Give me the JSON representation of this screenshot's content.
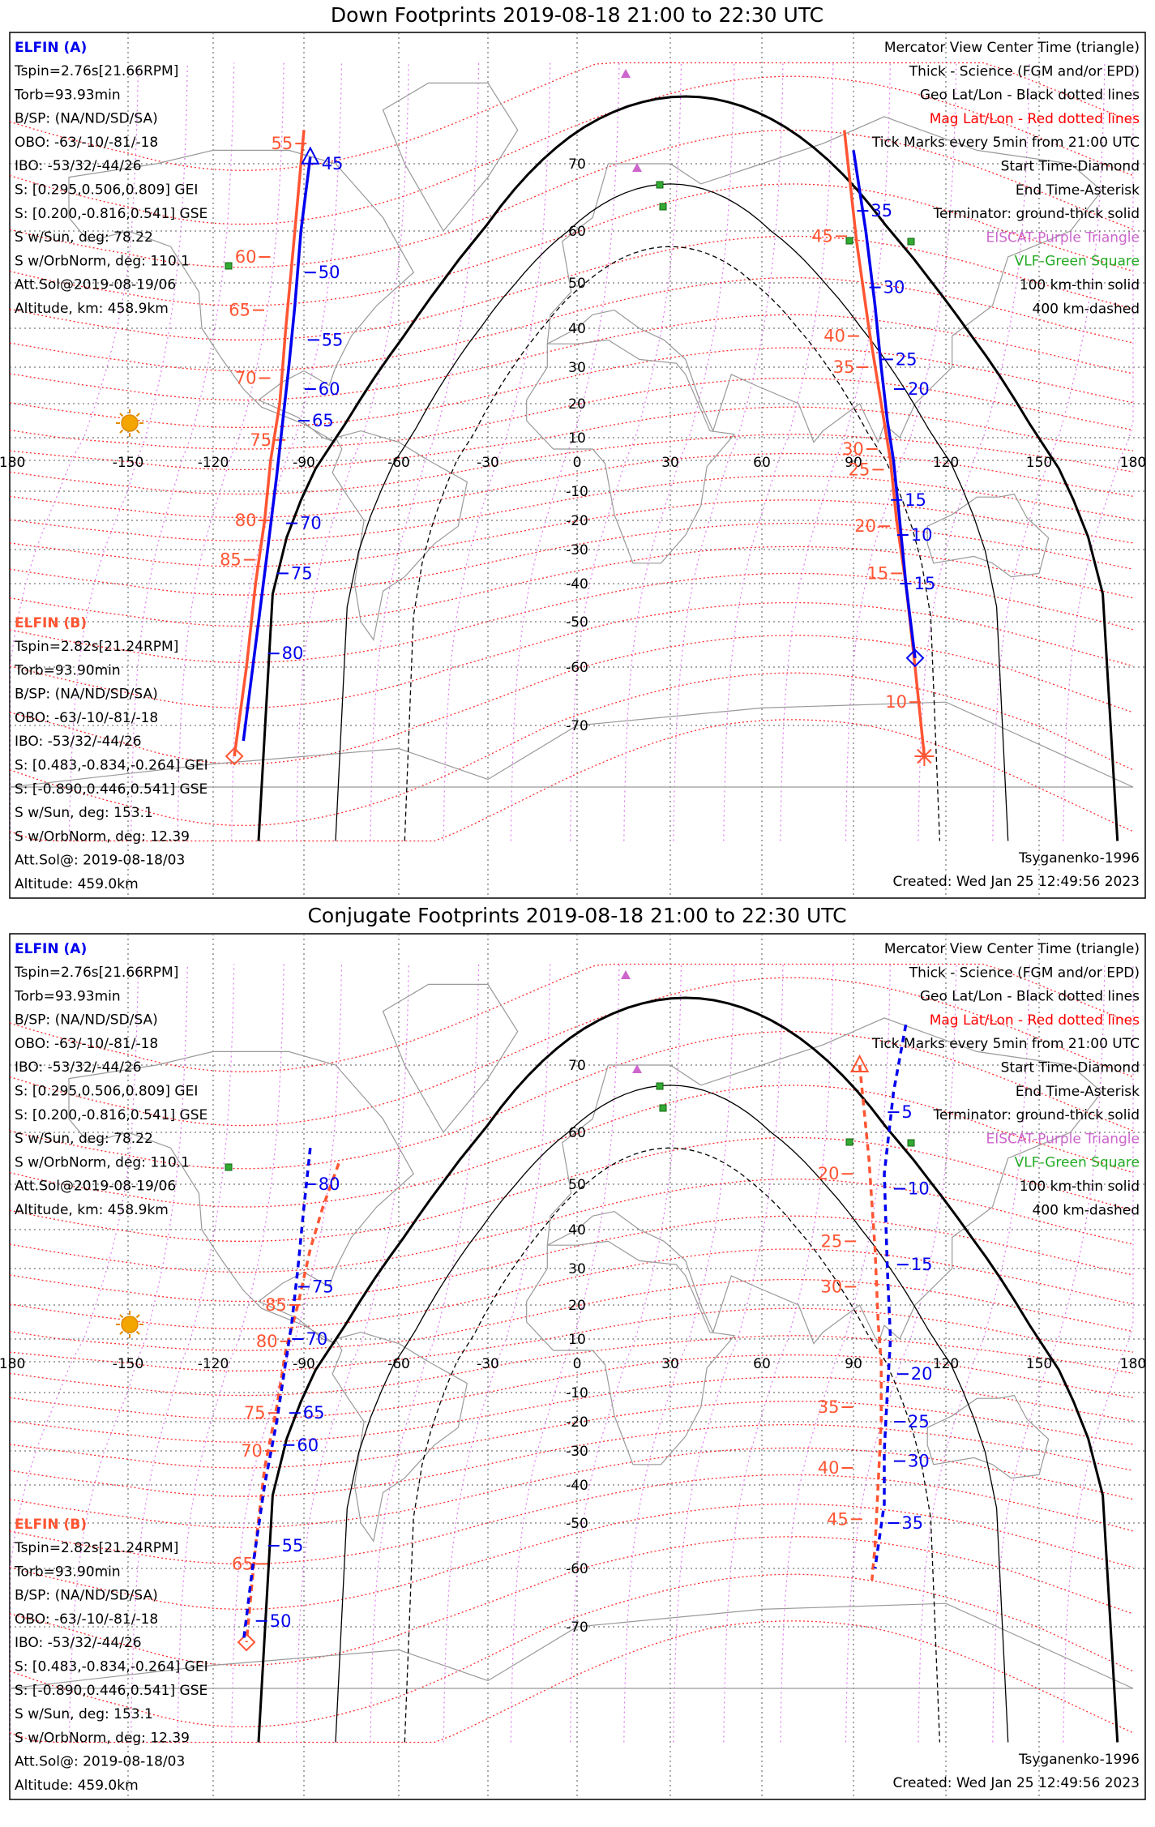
{
  "panels": [
    {
      "title": "Down Footprints 2019-08-18 21:00 to 22:30 UTC",
      "ticks": {
        "lon": [
          "-180",
          "-150",
          "-120",
          "-90",
          "-60",
          "-30",
          "0",
          "30",
          "60",
          "90",
          "120",
          "150",
          "180"
        ],
        "lat": [
          "70",
          "60",
          "50",
          "40",
          "30",
          "20",
          "10",
          "-10",
          "-20",
          "-30",
          "-40",
          "-50",
          "-60",
          "-70"
        ]
      },
      "info_a": {
        "title": "ELFIN (A)",
        "lines": [
          "Tspin=2.76s[21.66RPM]",
          "Torb=93.93min",
          "B/SP: (NA/ND/SD/SA)",
          "OBO: -63/-10/-81/-18",
          "IBO: -53/32/-44/26",
          "S: [0.295,0.506,0.809] GEI",
          "S: [0.200,-0.816,0.541] GSE",
          "S w/Sun, deg: 78.22",
          "S w/OrbNorm, deg: 110.1",
          "Att.Sol@2019-08-19/06",
          "Altitude, km: 458.9km"
        ]
      },
      "info_b": {
        "title": "ELFIN (B)",
        "lines": [
          "Tspin=2.82s[21.24RPM]",
          "Torb=93.90min",
          "B/SP: (NA/ND/SD/SA)",
          "OBO: -63/-10/-81/-18",
          "IBO: -53/32/-44/26",
          "S: [0.483,-0.834,-0.264] GEI",
          "S: [-0.890,0.446,0.541] GSE",
          "S w/Sun, deg: 153.1",
          "S w/OrbNorm, deg: 12.39",
          "Att.Sol@: 2019-08-18/03",
          "Altitude: 459.0km"
        ]
      },
      "legend": [
        {
          "text": "Mercator View Center Time (triangle)",
          "color": "#000000"
        },
        {
          "text": "Thick - Science (FGM and/or EPD)",
          "color": "#000000"
        },
        {
          "text": "Geo Lat/Lon - Black dotted lines",
          "color": "#000000"
        },
        {
          "text": "Mag Lat/Lon - Red dotted lines",
          "color": "#ff0000"
        },
        {
          "text": "Tick Marks every 5min from 21:00 UTC",
          "color": "#000000"
        },
        {
          "text": "Start Time-Diamond",
          "color": "#000000"
        },
        {
          "text": "End Time-Asterisk",
          "color": "#000000"
        },
        {
          "text": "Terminator: ground-thick solid",
          "color": "#000000"
        },
        {
          "text": "EISCAT-Purple Triangle",
          "color": "#cc66cc"
        },
        {
          "text": "VLF-Green Square",
          "color": "#22aa22"
        },
        {
          "text": "100 km-thin solid",
          "color": "#000000"
        },
        {
          "text": "400 km-dashed",
          "color": "#000000"
        }
      ],
      "model": "Tsyganenko-1996",
      "created": "Created: Wed Jan 25 12:49:56 2023",
      "tracks": [
        {
          "color": "#ff5533",
          "style": "solid",
          "marker": "diamond",
          "label_side": "left",
          "points": [
            [
              -90,
              75
            ],
            [
              -93,
              60
            ],
            [
              -96,
              40
            ],
            [
              -98,
              20
            ],
            [
              -101,
              0
            ],
            [
              -103,
              -20
            ],
            [
              -106,
              -40
            ],
            [
              -109,
              -60
            ],
            [
              -113,
              -74
            ]
          ],
          "labels": [
            [
              -91,
              73,
              "55"
            ],
            [
              -103,
              55,
              "60"
            ],
            [
              -105,
              44,
              "65"
            ],
            [
              -103,
              27,
              "70"
            ],
            [
              -98,
              9,
              "75"
            ],
            [
              -103,
              -20,
              "80"
            ],
            [
              -108,
              -33,
              "85"
            ]
          ]
        },
        {
          "color": "#0000ee",
          "style": "solid",
          "marker": "triangle",
          "label_side": "right",
          "points": [
            [
              -88,
              71
            ],
            [
              -91,
              60
            ],
            [
              -93,
              45
            ],
            [
              -95,
              30
            ],
            [
              -97,
              15
            ],
            [
              -99,
              -5
            ],
            [
              -102,
              -30
            ],
            [
              -105,
              -50
            ],
            [
              -110,
              -72
            ]
          ],
          "labels": [
            [
              -87,
              70,
              "45"
            ],
            [
              -88,
              52,
              "50"
            ],
            [
              -87,
              37,
              "55"
            ],
            [
              -88,
              24,
              "60"
            ],
            [
              -90,
              15,
              "65"
            ],
            [
              -94,
              -21,
              "70"
            ],
            [
              -97,
              -37,
              "75"
            ],
            [
              -100,
              -57,
              "80"
            ]
          ]
        },
        {
          "color": "#ff5533",
          "style": "solid",
          "marker": "asterisk",
          "label_side": "left",
          "points": [
            [
              87,
              75
            ],
            [
              91,
              58
            ],
            [
              95,
              40
            ],
            [
              99,
              20
            ],
            [
              102,
              0
            ],
            [
              104,
              -20
            ],
            [
              107,
              -40
            ],
            [
              110,
              -60
            ],
            [
              113,
              -74
            ]
          ],
          "labels": [
            [
              86,
              59,
              "45"
            ],
            [
              90,
              38,
              "40"
            ],
            [
              93,
              30,
              "35"
            ],
            [
              96,
              5,
              "30"
            ],
            [
              98,
              -3,
              "25"
            ],
            [
              100,
              -22,
              "20"
            ],
            [
              104,
              -37,
              "15"
            ],
            [
              110,
              -66,
              "10"
            ]
          ]
        },
        {
          "color": "#0000ee",
          "style": "solid",
          "marker": "diamond",
          "label_side": "right",
          "points": [
            [
              90,
              72
            ],
            [
              94,
              60
            ],
            [
              97,
              45
            ],
            [
              99,
              30
            ],
            [
              101,
              15
            ],
            [
              103,
              0
            ],
            [
              105,
              -20
            ],
            [
              107,
              -40
            ],
            [
              110,
              -58
            ]
          ],
          "labels": [
            [
              93,
              63,
              "35"
            ],
            [
              97,
              49,
              "30"
            ],
            [
              101,
              32,
              "25"
            ],
            [
              105,
              24,
              "20"
            ],
            [
              104,
              -13,
              "15"
            ],
            [
              106,
              -25,
              "10"
            ],
            [
              107,
              -40,
              "15"
            ]
          ]
        }
      ]
    },
    {
      "title": "Conjugate Footprints 2019-08-18 21:00 to 22:30 UTC",
      "ticks": {
        "lon": [
          "-180",
          "-150",
          "-120",
          "-90",
          "-60",
          "-30",
          "0",
          "30",
          "60",
          "90",
          "120",
          "150",
          "180"
        ],
        "lat": [
          "70",
          "60",
          "50",
          "40",
          "30",
          "20",
          "10",
          "-10",
          "-20",
          "-30",
          "-40",
          "-50",
          "-60",
          "-70"
        ]
      },
      "info_a": {
        "title": "ELFIN (A)",
        "lines": [
          "Tspin=2.76s[21.66RPM]",
          "Torb=93.93min",
          "B/SP: (NA/ND/SD/SA)",
          "OBO: -63/-10/-81/-18",
          "IBO: -53/32/-44/26",
          "S: [0.295,0.506,0.809] GEI",
          "S: [0.200,-0.816,0.541] GSE",
          "S w/Sun, deg: 78.22",
          "S w/OrbNorm, deg: 110.1",
          "Att.Sol@2019-08-19/06",
          "Altitude, km: 458.9km"
        ]
      },
      "info_b": {
        "title": "ELFIN (B)",
        "lines": [
          "Tspin=2.82s[21.24RPM]",
          "Torb=93.90min",
          "B/SP: (NA/ND/SD/SA)",
          "OBO: -63/-10/-81/-18",
          "IBO: -53/32/-44/26",
          "S: [0.483,-0.834,-0.264] GEI",
          "S: [-0.890,0.446,0.541] GSE",
          "S w/Sun, deg: 153.1",
          "S w/OrbNorm, deg: 12.39",
          "Att.Sol@: 2019-08-18/03",
          "Altitude: 459.0km"
        ]
      },
      "legend": [
        {
          "text": "Mercator View Center Time (triangle)",
          "color": "#000000"
        },
        {
          "text": "Thick - Science (FGM and/or EPD)",
          "color": "#000000"
        },
        {
          "text": "Geo Lat/Lon - Black dotted lines",
          "color": "#000000"
        },
        {
          "text": "Mag Lat/Lon - Red dotted lines",
          "color": "#ff0000"
        },
        {
          "text": "Tick Marks every 5min from 21:00 UTC",
          "color": "#000000"
        },
        {
          "text": "Start Time-Diamond",
          "color": "#000000"
        },
        {
          "text": "End Time-Asterisk",
          "color": "#000000"
        },
        {
          "text": "Terminator: ground-thick solid",
          "color": "#000000"
        },
        {
          "text": "EISCAT-Purple Triangle",
          "color": "#cc66cc"
        },
        {
          "text": "VLF-Green Square",
          "color": "#22aa22"
        },
        {
          "text": "100 km-thin solid",
          "color": "#000000"
        },
        {
          "text": "400 km-dashed",
          "color": "#000000"
        }
      ],
      "model": "Tsyganenko-1996",
      "created": "Created: Wed Jan 25 12:49:56 2023",
      "tracks": [
        {
          "color": "#ff5533",
          "style": "dashed",
          "marker": "diamond",
          "label_side": "left",
          "points": [
            [
              -79,
              54
            ],
            [
              -84,
              45
            ],
            [
              -88,
              35
            ],
            [
              -92,
              20
            ],
            [
              -96,
              5
            ],
            [
              -99,
              -15
            ],
            [
              -103,
              -35
            ],
            [
              -106,
              -55
            ],
            [
              -109,
              -72
            ]
          ],
          "labels": [
            [
              -93,
              20,
              "85"
            ],
            [
              -96,
              9,
              "80"
            ],
            [
              -100,
              -17,
              "75"
            ],
            [
              -101,
              -30,
              "70"
            ],
            [
              -104,
              -59,
              "65"
            ]
          ]
        },
        {
          "color": "#0000ee",
          "style": "dashed",
          "marker": "",
          "label_side": "right",
          "points": [
            [
              -88,
              57
            ],
            [
              -90,
              45
            ],
            [
              -92,
              30
            ],
            [
              -94,
              15
            ],
            [
              -96,
              0
            ],
            [
              -99,
              -20
            ],
            [
              -103,
              -40
            ],
            [
              -107,
              -60
            ],
            [
              -110,
              -72
            ]
          ],
          "labels": [
            [
              -88,
              50,
              "80"
            ],
            [
              -90,
              25,
              "75"
            ],
            [
              -92,
              10,
              "70"
            ],
            [
              -93,
              -17,
              "65"
            ],
            [
              -95,
              -28,
              "60"
            ],
            [
              -100,
              -55,
              "55"
            ],
            [
              -104,
              -69,
              "50"
            ]
          ]
        },
        {
          "color": "#ff5533",
          "style": "dashed",
          "marker": "triangle",
          "label_side": "left",
          "points": [
            [
              92,
              70
            ],
            [
              95,
              55
            ],
            [
              97,
              35
            ],
            [
              98,
              15
            ],
            [
              99,
              0
            ],
            [
              99,
              -20
            ],
            [
              98,
              -40
            ],
            [
              97,
              -55
            ],
            [
              96,
              -62
            ]
          ],
          "labels": [
            [
              88,
              52,
              "20"
            ],
            [
              89,
              37,
              "25"
            ],
            [
              89,
              25,
              "30"
            ],
            [
              88,
              -15,
              "35"
            ],
            [
              88,
              -35,
              "40"
            ],
            [
              91,
              -49,
              "45"
            ]
          ]
        },
        {
          "color": "#0000ee",
          "style": "dashed",
          "marker": "",
          "label_side": "right",
          "points": [
            [
              107,
              76
            ],
            [
              103,
              66
            ],
            [
              100,
              52
            ],
            [
              101,
              30
            ],
            [
              102,
              10
            ],
            [
              101,
              -10
            ],
            [
              100,
              -30
            ],
            [
              100,
              -45
            ],
            [
              97,
              -60
            ]
          ],
          "labels": [
            [
              103,
              63,
              "5"
            ],
            [
              105,
              49,
              "10"
            ],
            [
              106,
              31,
              "15"
            ],
            [
              106,
              -4,
              "20"
            ],
            [
              105,
              -20,
              "25"
            ],
            [
              105,
              -33,
              "30"
            ],
            [
              103,
              -50,
              "35"
            ]
          ]
        }
      ]
    }
  ]
}
